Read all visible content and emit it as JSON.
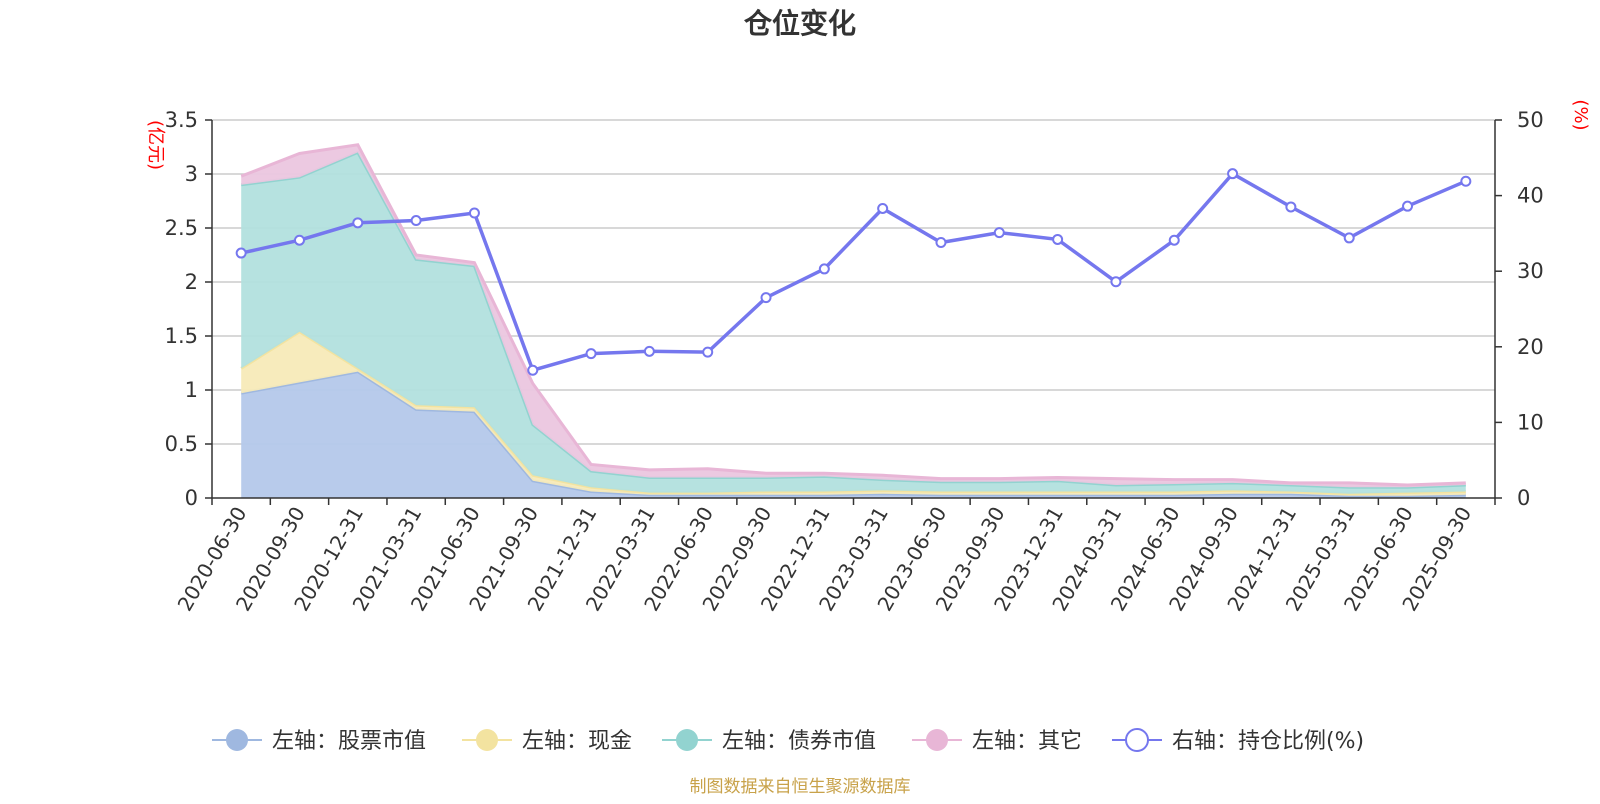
{
  "chart_data": {
    "type": "area",
    "title": "仓位变化",
    "left_axis": {
      "unit_label": "(亿元)",
      "ylim": [
        0,
        3.5
      ],
      "ticks": [
        "0",
        "0.5",
        "1",
        "1.5",
        "2",
        "2.5",
        "3",
        "3.5"
      ]
    },
    "right_axis": {
      "unit_label": "(%)",
      "ylim": [
        0,
        50
      ],
      "ticks": [
        "0",
        "10",
        "20",
        "30",
        "40",
        "50"
      ]
    },
    "categories": [
      "2020-06-30",
      "2020-09-30",
      "2020-12-31",
      "2021-03-31",
      "2021-06-30",
      "2021-09-30",
      "2021-12-31",
      "2022-03-31",
      "2022-06-30",
      "2022-09-30",
      "2022-12-31",
      "2023-03-31",
      "2023-06-30",
      "2023-09-30",
      "2023-12-31",
      "2024-03-31",
      "2024-06-30",
      "2024-09-30",
      "2024-12-31",
      "2025-03-31",
      "2025-06-30",
      "2025-09-30"
    ],
    "stacked_series": [
      {
        "name": "左轴：股票市值",
        "color": "#9fb8e0",
        "fill": "#b4c8ea",
        "values": [
          0.97,
          1.07,
          1.17,
          0.82,
          0.8,
          0.16,
          0.06,
          0.03,
          0.03,
          0.03,
          0.03,
          0.04,
          0.03,
          0.03,
          0.03,
          0.03,
          0.03,
          0.04,
          0.04,
          0.02,
          0.02,
          0.03
        ]
      },
      {
        "name": "左轴：现金",
        "color": "#f3e3a0",
        "fill": "#f7eab8",
        "values": [
          0.23,
          0.47,
          0.03,
          0.04,
          0.04,
          0.05,
          0.04,
          0.02,
          0.02,
          0.03,
          0.03,
          0.03,
          0.03,
          0.03,
          0.03,
          0.03,
          0.03,
          0.03,
          0.02,
          0.02,
          0.03,
          0.03
        ]
      },
      {
        "name": "左轴：债券市值",
        "color": "#92d3d0",
        "fill": "#b2e0de",
        "values": [
          1.7,
          1.43,
          2.0,
          1.35,
          1.31,
          0.47,
          0.15,
          0.14,
          0.14,
          0.13,
          0.14,
          0.1,
          0.09,
          0.09,
          0.1,
          0.06,
          0.07,
          0.07,
          0.06,
          0.06,
          0.05,
          0.06
        ]
      },
      {
        "name": "左轴：其它",
        "color": "#e8b6d6",
        "fill": "#ebc6df",
        "values": [
          0.08,
          0.22,
          0.07,
          0.04,
          0.03,
          0.38,
          0.06,
          0.07,
          0.08,
          0.04,
          0.03,
          0.04,
          0.03,
          0.03,
          0.03,
          0.06,
          0.04,
          0.03,
          0.02,
          0.04,
          0.02,
          0.02
        ]
      }
    ],
    "line_series": {
      "name": "右轴：持仓比例(%)",
      "color": "#7577ee",
      "values": [
        32.4,
        34.1,
        36.4,
        36.7,
        37.7,
        16.9,
        19.1,
        19.4,
        19.3,
        26.5,
        30.3,
        38.3,
        33.8,
        35.1,
        34.2,
        28.6,
        34.1,
        42.9,
        38.5,
        34.4,
        38.6,
        41.9
      ]
    },
    "legend_position": "bottom",
    "grid": true,
    "source_note": "制图数据来自恒生聚源数据库"
  }
}
